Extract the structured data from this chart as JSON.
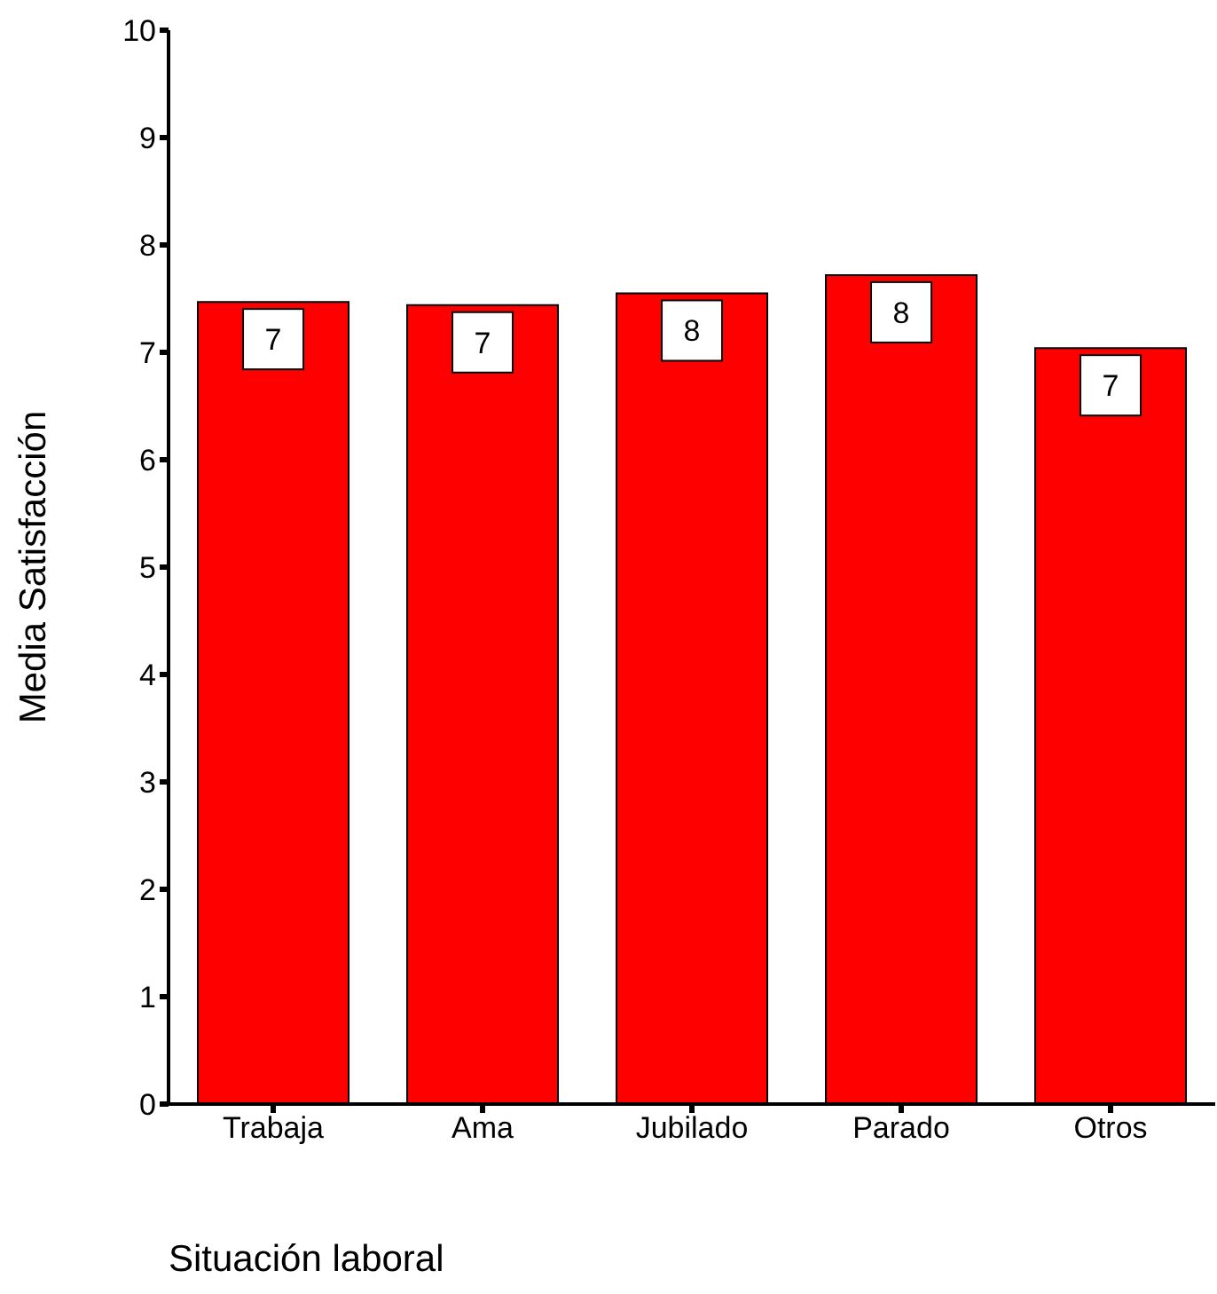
{
  "chart_data": {
    "type": "bar",
    "xlabel": "Situación laboral",
    "ylabel": "Media Satisfacción",
    "categories": [
      "Trabaja",
      "Ama",
      "Jubilado",
      "Parado",
      "Otros"
    ],
    "values": [
      7.47,
      7.44,
      7.55,
      7.72,
      7.04
    ],
    "value_labels": [
      "7",
      "7",
      "8",
      "8",
      "7"
    ],
    "color": "#ff0000",
    "ylim": [
      0,
      10
    ],
    "yticks": [
      0,
      1,
      2,
      3,
      4,
      5,
      6,
      7,
      8,
      9,
      10
    ],
    "grid": false,
    "legend": false
  }
}
